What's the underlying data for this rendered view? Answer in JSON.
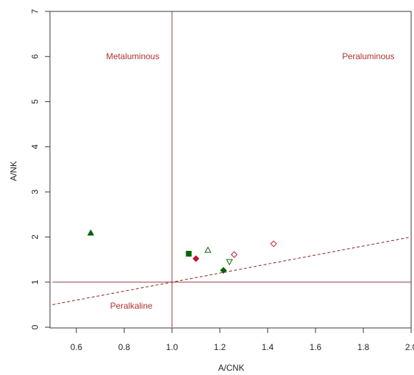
{
  "chart_data": {
    "type": "scatter",
    "x_label": "A/CNK",
    "y_label": "A/NK",
    "annotations": [
      "Metaluminous",
      "Peraluminous",
      "Peralkaline"
    ],
    "x": [
      0.66,
      1.07,
      1.1,
      1.15,
      1.24,
      1.26,
      1.215,
      1.425
    ],
    "y": [
      2.09,
      1.63,
      1.52,
      1.71,
      1.45,
      1.61,
      1.26,
      1.85
    ],
    "markers": [
      "triangle-filled",
      "square-filled",
      "diamond-filled",
      "triangle-open",
      "triangle-down-open",
      "diamond-open",
      "diamond-filled",
      "diamond-open"
    ],
    "colors": [
      "#006400",
      "#006400",
      "#c0142a",
      "#006400",
      "#006400",
      "#c0142a",
      "#006400",
      "#c0142a"
    ],
    "reference_lines": [
      {
        "x": [
          1,
          1
        ],
        "y": [
          0,
          7
        ],
        "style": "solid",
        "color": "#8b3a3a"
      },
      {
        "x": [
          0.5,
          2.0
        ],
        "y": [
          1,
          1
        ],
        "style": "solid",
        "color": "#8b3a3a"
      },
      {
        "x": [
          0.5,
          2.0
        ],
        "y": [
          0.5,
          2.0
        ],
        "style": "dashed",
        "color": "#8b1a1a"
      }
    ],
    "xlim": [
      0.5,
      2.0
    ],
    "ylim": [
      0,
      7
    ],
    "xticks": [
      0.6,
      0.8,
      {
        "value": 1.0,
        "label": "1.0"
      },
      1.2,
      1.4,
      1.6,
      1.8,
      {
        "value": 2.0,
        "label": "2.0"
      }
    ],
    "yticks": [
      0,
      1,
      2,
      3,
      4,
      5,
      6,
      7
    ],
    "annotation_color": "#b03030"
  }
}
